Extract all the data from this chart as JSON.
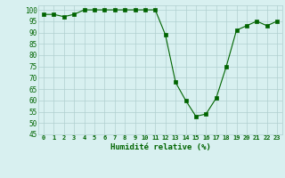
{
  "x": [
    0,
    1,
    2,
    3,
    4,
    5,
    6,
    7,
    8,
    9,
    10,
    11,
    12,
    13,
    14,
    15,
    16,
    17,
    18,
    19,
    20,
    21,
    22,
    23
  ],
  "y": [
    98,
    98,
    97,
    98,
    100,
    100,
    100,
    100,
    100,
    100,
    100,
    100,
    89,
    68,
    60,
    53,
    54,
    61,
    75,
    91,
    93,
    95,
    93,
    95
  ],
  "xlabel": "Humidité relative (%)",
  "ylim": [
    45,
    102
  ],
  "xlim": [
    -0.5,
    23.5
  ],
  "yticks": [
    45,
    50,
    55,
    60,
    65,
    70,
    75,
    80,
    85,
    90,
    95,
    100
  ],
  "xticks": [
    0,
    1,
    2,
    3,
    4,
    5,
    6,
    7,
    8,
    9,
    10,
    11,
    12,
    13,
    14,
    15,
    16,
    17,
    18,
    19,
    20,
    21,
    22,
    23
  ],
  "line_color": "#006400",
  "marker_color": "#006400",
  "bg_color": "#d8f0f0",
  "grid_color": "#b0d0d0"
}
